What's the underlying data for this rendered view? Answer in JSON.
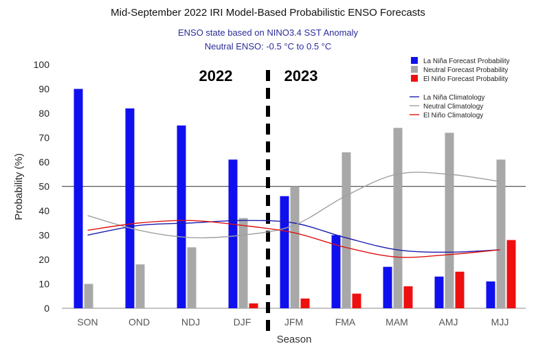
{
  "title": "Mid-September 2022 IRI Model-Based Probabilistic ENSO Forecasts",
  "subtitle_line1": "ENSO state based on NINO3.4 SST Anomaly",
  "subtitle_line2": "Neutral ENSO: -0.5 °C to 0.5 °C",
  "year_labels": {
    "left": "2022",
    "right": "2023"
  },
  "colors": {
    "la_nina": "#1010ee",
    "neutral": "#a8a8a8",
    "el_nino": "#ee1010",
    "la_nina_clim": "#1a1ab0",
    "neutral_clim": "#a0a0a0",
    "el_nino_clim": "#dd1111",
    "reference_line": "#555555",
    "divider": "#000000"
  },
  "chart_data": {
    "type": "bar",
    "title": "Mid-September 2022 IRI Model-Based Probabilistic ENSO Forecasts",
    "xlabel": "Season",
    "ylabel": "Probability (%)",
    "ylim": [
      0,
      100
    ],
    "yticks": [
      0,
      10,
      20,
      30,
      40,
      50,
      60,
      70,
      80,
      90,
      100
    ],
    "grid": false,
    "reference_line_y": 50,
    "year_divider_between": [
      "DJF",
      "JFM"
    ],
    "legend_position": "top-right",
    "categories": [
      "SON",
      "OND",
      "NDJ",
      "DJF",
      "JFM",
      "FMA",
      "MAM",
      "AMJ",
      "MJJ"
    ],
    "series": [
      {
        "name": "La Niña Forecast Probability",
        "values": [
          90,
          82,
          75,
          61,
          46,
          30,
          17,
          13,
          11
        ]
      },
      {
        "name": "Neutral Forecast Probability",
        "values": [
          10,
          18,
          25,
          37,
          50,
          64,
          74,
          72,
          61
        ]
      },
      {
        "name": "El Niño Forecast Probability",
        "values": [
          0,
          0,
          0,
          2,
          4,
          6,
          9,
          15,
          28
        ]
      }
    ],
    "climatology": [
      {
        "name": "La Niña Climatology",
        "values": [
          30,
          34,
          35,
          36,
          35,
          29,
          24,
          23,
          24
        ]
      },
      {
        "name": "Neutral Climatology",
        "values": [
          38,
          32,
          29,
          30,
          34,
          46,
          55,
          55,
          52
        ]
      },
      {
        "name": "El Niño Climatology",
        "values": [
          32,
          35,
          36,
          34,
          31,
          25,
          21,
          22,
          24
        ]
      }
    ]
  }
}
